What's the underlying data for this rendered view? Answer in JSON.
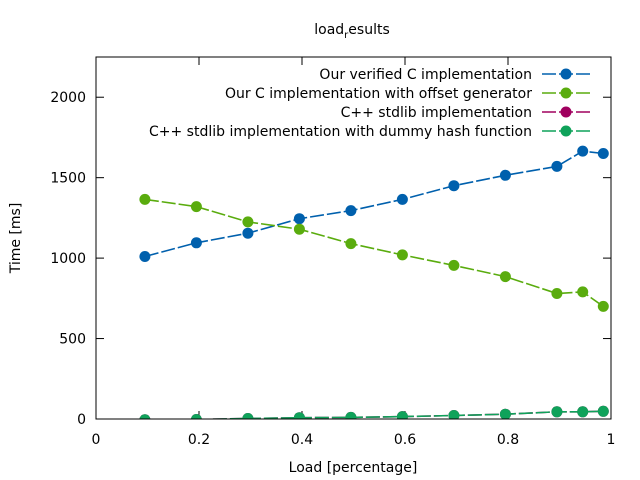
{
  "chart_data": {
    "type": "line",
    "title": "load_results",
    "title_main": "load",
    "title_sub": "r",
    "title_rest": "esults",
    "xlabel": "Load [percentage]",
    "ylabel": "Time [ms]",
    "xlim": [
      0,
      1
    ],
    "ylim": [
      0,
      2250
    ],
    "xticks": [
      0,
      0.2,
      0.4,
      0.6,
      0.8,
      1
    ],
    "xtick_labels": [
      "0",
      "0.2",
      "0.4",
      "0.6",
      "0.8",
      "1"
    ],
    "yticks": [
      0,
      500,
      1000,
      1500,
      2000
    ],
    "ytick_labels": [
      "0",
      "500",
      "1000",
      "1500",
      "2000"
    ],
    "grid": false,
    "legend_position": "top-right",
    "x": [
      0.095,
      0.195,
      0.295,
      0.395,
      0.495,
      0.595,
      0.695,
      0.795,
      0.895,
      0.945,
      0.985
    ],
    "series": [
      {
        "name": "Our verified C implementation",
        "color": "#0060ad",
        "values": [
          1010,
          1095,
          1155,
          1245,
          1295,
          1365,
          1450,
          1515,
          1570,
          1665,
          1650
        ]
      },
      {
        "name": "Our C implementation with offset generator",
        "color": "#5aac0e",
        "values": [
          1365,
          1320,
          1225,
          1180,
          1090,
          1020,
          955,
          885,
          780,
          790,
          700
        ]
      },
      {
        "name": "C++ stdlib implementation",
        "color": "#a0005f",
        "values": [
          -5,
          -3,
          3,
          8,
          10,
          15,
          22,
          30,
          45,
          45,
          48
        ]
      },
      {
        "name": "C++ stdlib implementation with dummy hash function",
        "color": "#0fa25a",
        "values": [
          -5,
          -3,
          3,
          8,
          10,
          15,
          22,
          30,
          45,
          45,
          48
        ]
      }
    ]
  }
}
